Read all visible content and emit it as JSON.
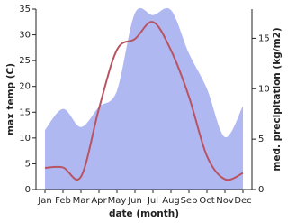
{
  "chart_data": {
    "type": "line-area",
    "xlabel": "date (month)",
    "ylabel": "max temp (C)",
    "y2label": "med. precipitation (kg/m2)",
    "categories": [
      "Jan",
      "Feb",
      "Mar",
      "Apr",
      "May",
      "Jun",
      "Jul",
      "Aug",
      "Sep",
      "Oct",
      "Nov",
      "Dec"
    ],
    "series": [
      {
        "name": "max temp",
        "color": "#b85462",
        "values": [
          4.2,
          4.3,
          2.5,
          15.7,
          27.1,
          29.2,
          32.5,
          27,
          18,
          6.5,
          2,
          3.2
        ]
      },
      {
        "name": "med. precipitation",
        "color": "#b0b8f2",
        "axis": "y2",
        "values": [
          5.9,
          8,
          6.2,
          8.2,
          9.8,
          17.5,
          17.3,
          17.8,
          13.5,
          10,
          5.2,
          8.3
        ]
      }
    ],
    "ylim": [
      0,
      35
    ],
    "yticks": [
      0,
      5,
      10,
      15,
      20,
      25,
      30,
      35
    ],
    "y2lim": [
      0,
      17.9
    ],
    "y2ticks": [
      0,
      5,
      10,
      15
    ]
  }
}
